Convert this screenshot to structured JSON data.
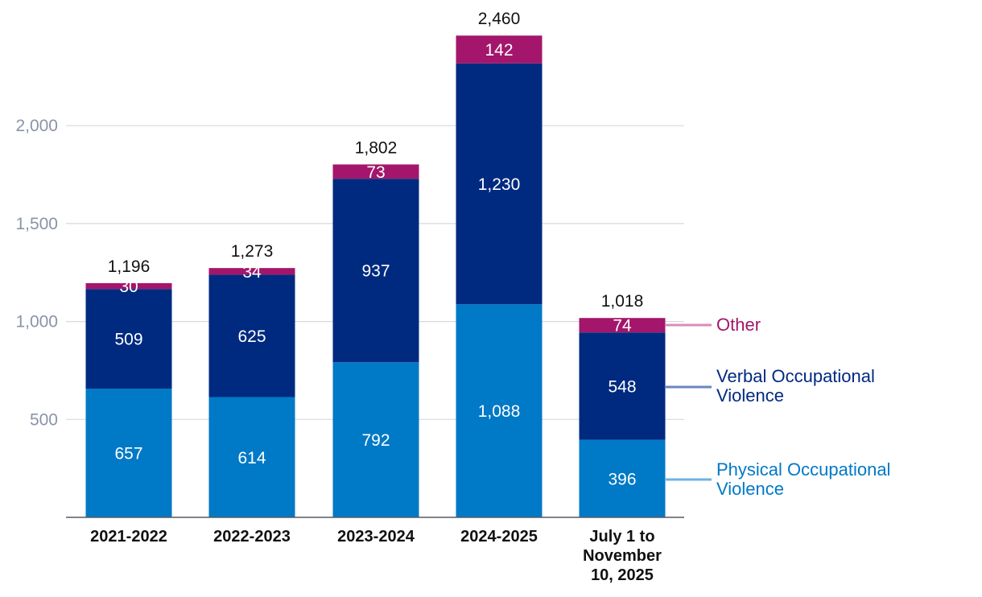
{
  "chart_data": {
    "type": "bar",
    "stacked": true,
    "title": "",
    "xlabel": "",
    "ylabel": "",
    "categories": [
      "2021-2022",
      "2022-2023",
      "2023-2024",
      "2024-2025",
      "July 1 to November 10, 2025"
    ],
    "category_lines": [
      [
        "2021-2022"
      ],
      [
        "2022-2023"
      ],
      [
        "2023-2024"
      ],
      [
        "2024-2025"
      ],
      [
        "July 1 to",
        "November",
        "10, 2025"
      ]
    ],
    "series": [
      {
        "name": "Physical Occupational Violence",
        "name_lines": [
          "Physical Occupational",
          "Violence"
        ],
        "values": [
          657,
          614,
          792,
          1088,
          396
        ],
        "color": "#0079c6",
        "legend_color": "#6fb3e0"
      },
      {
        "name": "Verbal Occupational Violence",
        "name_lines": [
          "Verbal Occupational",
          "Violence"
        ],
        "values": [
          509,
          625,
          937,
          1230,
          548
        ],
        "color": "#002a80",
        "legend_color": "#6b86c0"
      },
      {
        "name": "Other",
        "name_lines": [
          "Other"
        ],
        "values": [
          30,
          34,
          73,
          142,
          74
        ],
        "color": "#a3166b",
        "legend_color": "#d98db8"
      }
    ],
    "totals": [
      1196,
      1273,
      1802,
      2460,
      1018
    ],
    "yticks": [
      500,
      1000,
      1500,
      2000
    ],
    "ylim": [
      0,
      2460
    ],
    "grid": true,
    "legend": "right"
  }
}
